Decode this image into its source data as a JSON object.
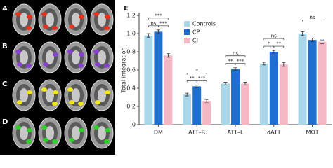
{
  "panels": {
    "brain_labels": [
      "A",
      "B",
      "C",
      "D"
    ]
  },
  "chart_data": {
    "type": "bar",
    "panel_label": "E",
    "ylabel": "Total integration",
    "categories": [
      "DM",
      "ATT–R",
      "ATT–L",
      "dATT",
      "MOT"
    ],
    "series": [
      {
        "name": "Controls",
        "color": "#a9d6e8",
        "values": [
          0.98,
          0.33,
          0.45,
          0.67,
          1.0
        ],
        "errors": [
          0.02,
          0.015,
          0.015,
          0.015,
          0.02
        ]
      },
      {
        "name": "CP",
        "color": "#1f6fd0",
        "values": [
          1.02,
          0.42,
          0.61,
          0.8,
          0.93
        ],
        "errors": [
          0.02,
          0.015,
          0.015,
          0.015,
          0.02
        ]
      },
      {
        "name": "CI",
        "color": "#f5b7c4",
        "values": [
          0.76,
          0.26,
          0.45,
          0.66,
          0.91
        ],
        "errors": [
          0.02,
          0.015,
          0.015,
          0.02,
          0.02
        ]
      }
    ],
    "ylim": [
      0,
      1.2
    ],
    "yticks": [
      0,
      0.2,
      0.4,
      0.6,
      0.8,
      {
        "value": 1.0,
        "label": "1.0"
      },
      1.2
    ],
    "significance": [
      [
        {
          "series": [
            0,
            2
          ],
          "label": "***"
        },
        {
          "series": [
            0,
            1
          ],
          "label": "ns"
        },
        {
          "series": [
            1,
            2
          ],
          "label": "***"
        }
      ],
      [
        {
          "series": [
            0,
            2
          ],
          "label": "*"
        },
        {
          "series": [
            0,
            1
          ],
          "label": "**"
        },
        {
          "series": [
            1,
            2
          ],
          "label": "***"
        }
      ],
      [
        {
          "series": [
            0,
            2
          ],
          "label": "ns"
        },
        {
          "series": [
            0,
            1
          ],
          "label": "**"
        },
        {
          "series": [
            1,
            2
          ],
          "label": "***"
        }
      ],
      [
        {
          "series": [
            0,
            2
          ],
          "label": "ns"
        },
        {
          "series": [
            0,
            1
          ],
          "label": "*"
        },
        {
          "series": [
            1,
            2
          ],
          "label": "**"
        }
      ],
      [
        {
          "series": [
            0,
            2
          ],
          "label": "ns"
        }
      ]
    ]
  }
}
